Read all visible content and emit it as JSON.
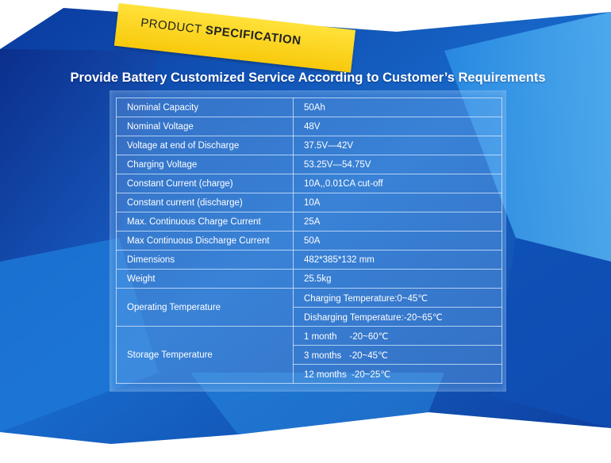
{
  "banner": {
    "word1": "PRODUCT",
    "word2": "SPECIFICATION"
  },
  "heading": "Provide Battery Customized Service According to Customer’s Requirements",
  "colors": {
    "dark_blue": "#0a2f8f",
    "mid_blue": "#1d7ad6",
    "light_blue": "#4aa8ee",
    "banner_yellow": "#fbd51c"
  },
  "spec": {
    "rows": [
      {
        "label": "Nominal Capacity",
        "value": "50Ah"
      },
      {
        "label": "Nominal Voltage",
        "value": "48V"
      },
      {
        "label": "Voltage at end of Discharge",
        "value": "37.5V—42V"
      },
      {
        "label": "Charging Voltage",
        "value": "53.25V—54.75V"
      },
      {
        "label": "Constant Current (charge)",
        "value": "10A,,0.01CA cut-off"
      },
      {
        "label": "Constant current (discharge)",
        "value": "10A"
      },
      {
        "label": "Max. Continuous Charge Current",
        "value": "25A"
      },
      {
        "label": "Max Continuous Discharge Current",
        "value": "50A"
      },
      {
        "label": "Dimensions",
        "value": "482*385*132 mm"
      },
      {
        "label": "Weight",
        "value": "25.5kg"
      }
    ],
    "operating": {
      "label": "Operating Temperature",
      "values": [
        "Charging Temperature:0~45℃",
        "Disharging Temperature:-20~65℃"
      ]
    },
    "storage": {
      "label": "Storage Temperature",
      "values": [
        "1 month     -20~60℃",
        "3 months   -20~45℃",
        "12 months  -20~25℃"
      ]
    }
  }
}
